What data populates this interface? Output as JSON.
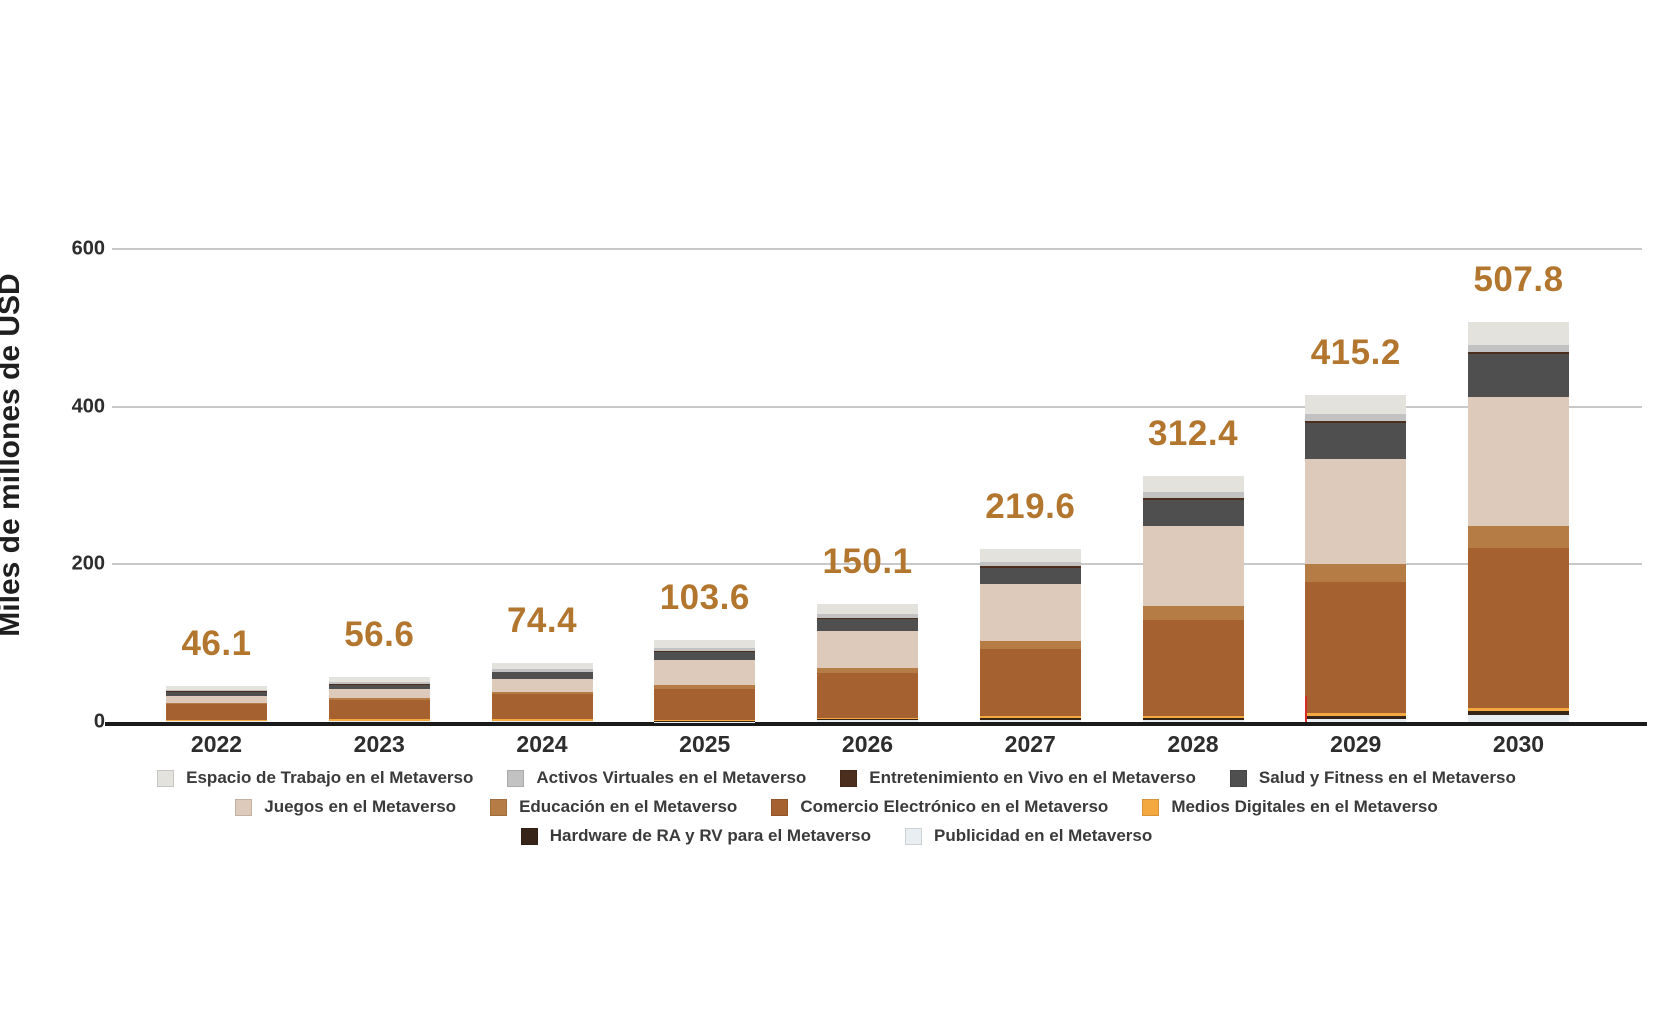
{
  "y_axis": {
    "title": "Miles de millones de USD",
    "tick_labels": [
      "600",
      "400",
      "200",
      "0"
    ],
    "tick_values": [
      600,
      400,
      200,
      0
    ]
  },
  "chart_data": {
    "type": "bar",
    "stacked": true,
    "title": "",
    "xlabel": "",
    "ylabel": "Miles de millones de USD",
    "ylim": [
      0,
      600
    ],
    "grid": "horizontal",
    "gridline_values": [
      600,
      400,
      200
    ],
    "legend_position": "bottom",
    "legend_rows": [
      [
        0,
        1,
        2,
        3
      ],
      [
        4,
        5,
        6,
        7
      ],
      [
        8,
        9
      ]
    ],
    "categories": [
      "2022",
      "2023",
      "2024",
      "2025",
      "2026",
      "2027",
      "2028",
      "2029",
      "2030"
    ],
    "totals": [
      46.1,
      56.6,
      74.4,
      103.6,
      150.1,
      219.6,
      312.4,
      415.2,
      507.8
    ],
    "total_labels": [
      "46.1",
      "56.6",
      "74.4",
      "103.6",
      "150.1",
      "219.6",
      "312.4",
      "415.2",
      "507.8"
    ],
    "stack_order_note": "series listed in legend order; bars stack bottom-to-top in reverse of this list (Publicidad at bottom, Espacio de Trabajo on top)",
    "series": [
      {
        "name": "Espacio de Trabajo en el Metaverso",
        "color": "#e4e2dd",
        "values": [
          5,
          6,
          7.5,
          10,
          13,
          16,
          21,
          25,
          29
        ]
      },
      {
        "name": "Activos Virtuales en el Metaverso",
        "color": "#c2c2c2",
        "values": [
          2,
          2.4,
          3,
          3.5,
          4.5,
          6,
          7,
          8,
          9
        ]
      },
      {
        "name": "Entretenimiento en Vivo en el Metaverso",
        "color": "#4b2e1d",
        "values": [
          0.5,
          0.6,
          0.8,
          1,
          1.5,
          2,
          2.5,
          3,
          3.5
        ]
      },
      {
        "name": "Salud y Fitness en el Metaverso",
        "color": "#4f4f4f",
        "values": [
          5,
          6,
          8.5,
          10.5,
          15,
          21,
          33,
          45,
          54
        ]
      },
      {
        "name": "Juegos en el Metaverso",
        "color": "#decaba",
        "values": [
          9,
          11,
          16,
          32,
          48,
          72,
          102,
          134,
          164
        ]
      },
      {
        "name": "Educación en el Metaverso",
        "color": "#b57c46",
        "values": [
          2,
          2.5,
          3.5,
          4.5,
          6.5,
          9.5,
          18,
          23,
          27
        ]
      },
      {
        "name": "Comercio Electrónico en el Metaverso",
        "color": "#a5612f",
        "values": [
          19.6,
          24.5,
          31.5,
          39,
          56,
          85,
          121,
          166,
          204
        ]
      },
      {
        "name": "Medios Digitales en el Metaverso",
        "color": "#f4a840",
        "values": [
          1.5,
          1.8,
          2,
          2,
          2.2,
          2.5,
          2.9,
          3.2,
          3.8
        ]
      },
      {
        "name": "Hardware de RA y RV para el Metaverso",
        "color": "#372419",
        "values": [
          0.7,
          0.8,
          0.9,
          0.6,
          0.9,
          3.6,
          3,
          4,
          5
        ]
      },
      {
        "name": "Publicidad en el Metaverso",
        "color": "#e9eef2",
        "values": [
          0.8,
          1,
          0.7,
          0.5,
          2.5,
          2,
          2,
          4,
          8.5
        ]
      }
    ]
  },
  "colors": {
    "total_label": "#b2762f",
    "axis_line": "#1a1a1a",
    "gridline": "#c8c8c8",
    "tick_text": "#2d2d2d",
    "legend_text": "#3a3a3a",
    "background": "#ffffff",
    "artifact_red_line": "#d62b2b"
  }
}
